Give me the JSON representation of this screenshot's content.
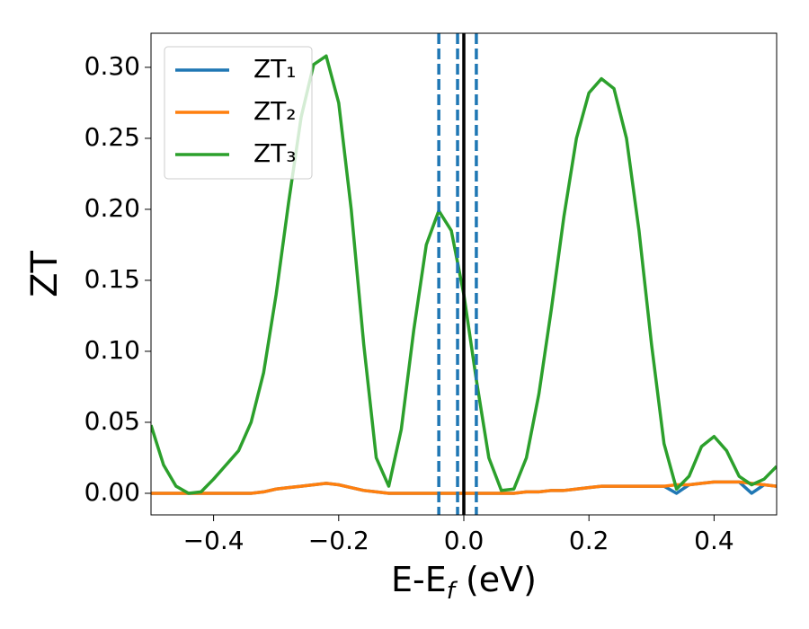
{
  "chart_data": {
    "type": "line",
    "ylabel": "ZT",
    "xlabel": [
      "E-E",
      "f",
      " (eV)"
    ],
    "x": [
      -0.5,
      -0.48,
      -0.46,
      -0.44,
      -0.42,
      -0.4,
      -0.38,
      -0.36,
      -0.34,
      -0.32,
      -0.3,
      -0.28,
      -0.26,
      -0.24,
      -0.22,
      -0.2,
      -0.18,
      -0.16,
      -0.14,
      -0.12,
      -0.1,
      -0.08,
      -0.06,
      -0.04,
      -0.02,
      0,
      0.02,
      0.04,
      0.06,
      0.08,
      0.1,
      0.12,
      0.14,
      0.16,
      0.18,
      0.2,
      0.22,
      0.24,
      0.26,
      0.28,
      0.3,
      0.32,
      0.34,
      0.36,
      0.38,
      0.4,
      0.42,
      0.44,
      0.46,
      0.48,
      0.5
    ],
    "series": [
      {
        "name": "ZT₁",
        "color": "#1f77b4",
        "values": [
          0,
          0,
          0,
          0,
          0,
          0,
          0,
          0,
          0,
          0.001,
          0.003,
          0.004,
          0.005,
          0.006,
          0.007,
          0.006,
          0.004,
          0.002,
          0.001,
          0,
          0,
          0,
          0,
          0,
          0,
          0,
          0,
          0,
          0,
          0,
          0.001,
          0.001,
          0.002,
          0.002,
          0.003,
          0.004,
          0.005,
          0.005,
          0.005,
          0.005,
          0.005,
          0.005,
          0,
          0.006,
          0.007,
          0.008,
          0.008,
          0.008,
          0,
          0.006,
          0.005
        ]
      },
      {
        "name": "ZT₂",
        "color": "#ff7f0e",
        "values": [
          0,
          0,
          0,
          0,
          0,
          0,
          0,
          0,
          0,
          0.001,
          0.003,
          0.004,
          0.005,
          0.006,
          0.007,
          0.006,
          0.004,
          0.002,
          0.001,
          0,
          0,
          0,
          0,
          0,
          0,
          0,
          0,
          0,
          0,
          0,
          0.001,
          0.001,
          0.002,
          0.002,
          0.003,
          0.004,
          0.005,
          0.005,
          0.005,
          0.005,
          0.005,
          0.005,
          0.006,
          0.006,
          0.007,
          0.008,
          0.008,
          0.008,
          0.007,
          0.006,
          0.005
        ]
      },
      {
        "name": "ZT₃",
        "color": "#2ca02c",
        "values": [
          0.048,
          0.02,
          0.005,
          0,
          0.001,
          0.01,
          0.02,
          0.03,
          0.05,
          0.085,
          0.14,
          0.205,
          0.265,
          0.302,
          0.308,
          0.275,
          0.2,
          0.105,
          0.025,
          0.005,
          0.045,
          0.115,
          0.175,
          0.199,
          0.185,
          0.14,
          0.08,
          0.025,
          0.002,
          0.003,
          0.025,
          0.07,
          0.13,
          0.195,
          0.25,
          0.282,
          0.292,
          0.285,
          0.25,
          0.185,
          0.105,
          0.035,
          0.003,
          0.012,
          0.033,
          0.04,
          0.03,
          0.012,
          0.006,
          0.01,
          0.019
        ]
      }
    ],
    "vlines": [
      {
        "x": -0.04,
        "color": "#1f77b4",
        "style": "dashed"
      },
      {
        "x": -0.01,
        "color": "#1f77b4",
        "style": "dashed"
      },
      {
        "x": 0.02,
        "color": "#1f77b4",
        "style": "dashed"
      },
      {
        "x": 0,
        "color": "#000000",
        "style": "solid"
      }
    ],
    "xlim": [
      -0.5,
      0.5
    ],
    "ylim": [
      -0.0152,
      0.324
    ],
    "xticks": [
      {
        "value": -0.4,
        "label": "−0.4"
      },
      {
        "value": -0.2,
        "label": "−0.2"
      },
      {
        "value": 0,
        "label": "0.0"
      },
      0.2,
      0.4
    ],
    "yticks": [
      {
        "value": 0,
        "label": "0.00"
      },
      {
        "value": 0.05,
        "label": "0.05"
      },
      {
        "value": 0.1,
        "label": "0.10"
      },
      {
        "value": 0.15,
        "label": "0.15"
      },
      {
        "value": 0.2,
        "label": "0.20"
      },
      {
        "value": 0.25,
        "label": "0.25"
      },
      {
        "value": 0.3,
        "label": "0.30"
      }
    ],
    "legend": "upper left"
  }
}
